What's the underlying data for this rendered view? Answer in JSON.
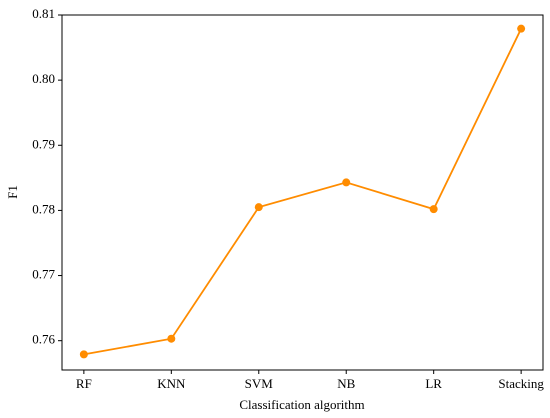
{
  "chart_data": {
    "type": "line",
    "x_label": "Classification algorithm",
    "y_label": "F1",
    "categories": [
      "RF",
      "KNN",
      "SVM",
      "NB",
      "LR",
      "Stacking"
    ],
    "values": [
      0.7579,
      0.7603,
      0.7805,
      0.7843,
      0.7802,
      0.8079
    ],
    "color": "#ff8c00",
    "ylim": [
      0.7555,
      0.81
    ],
    "yticks": [
      0.76,
      0.77,
      0.78,
      0.79,
      {
        "value": 0.8,
        "label": "0.80"
      },
      0.81
    ],
    "grid": false
  }
}
